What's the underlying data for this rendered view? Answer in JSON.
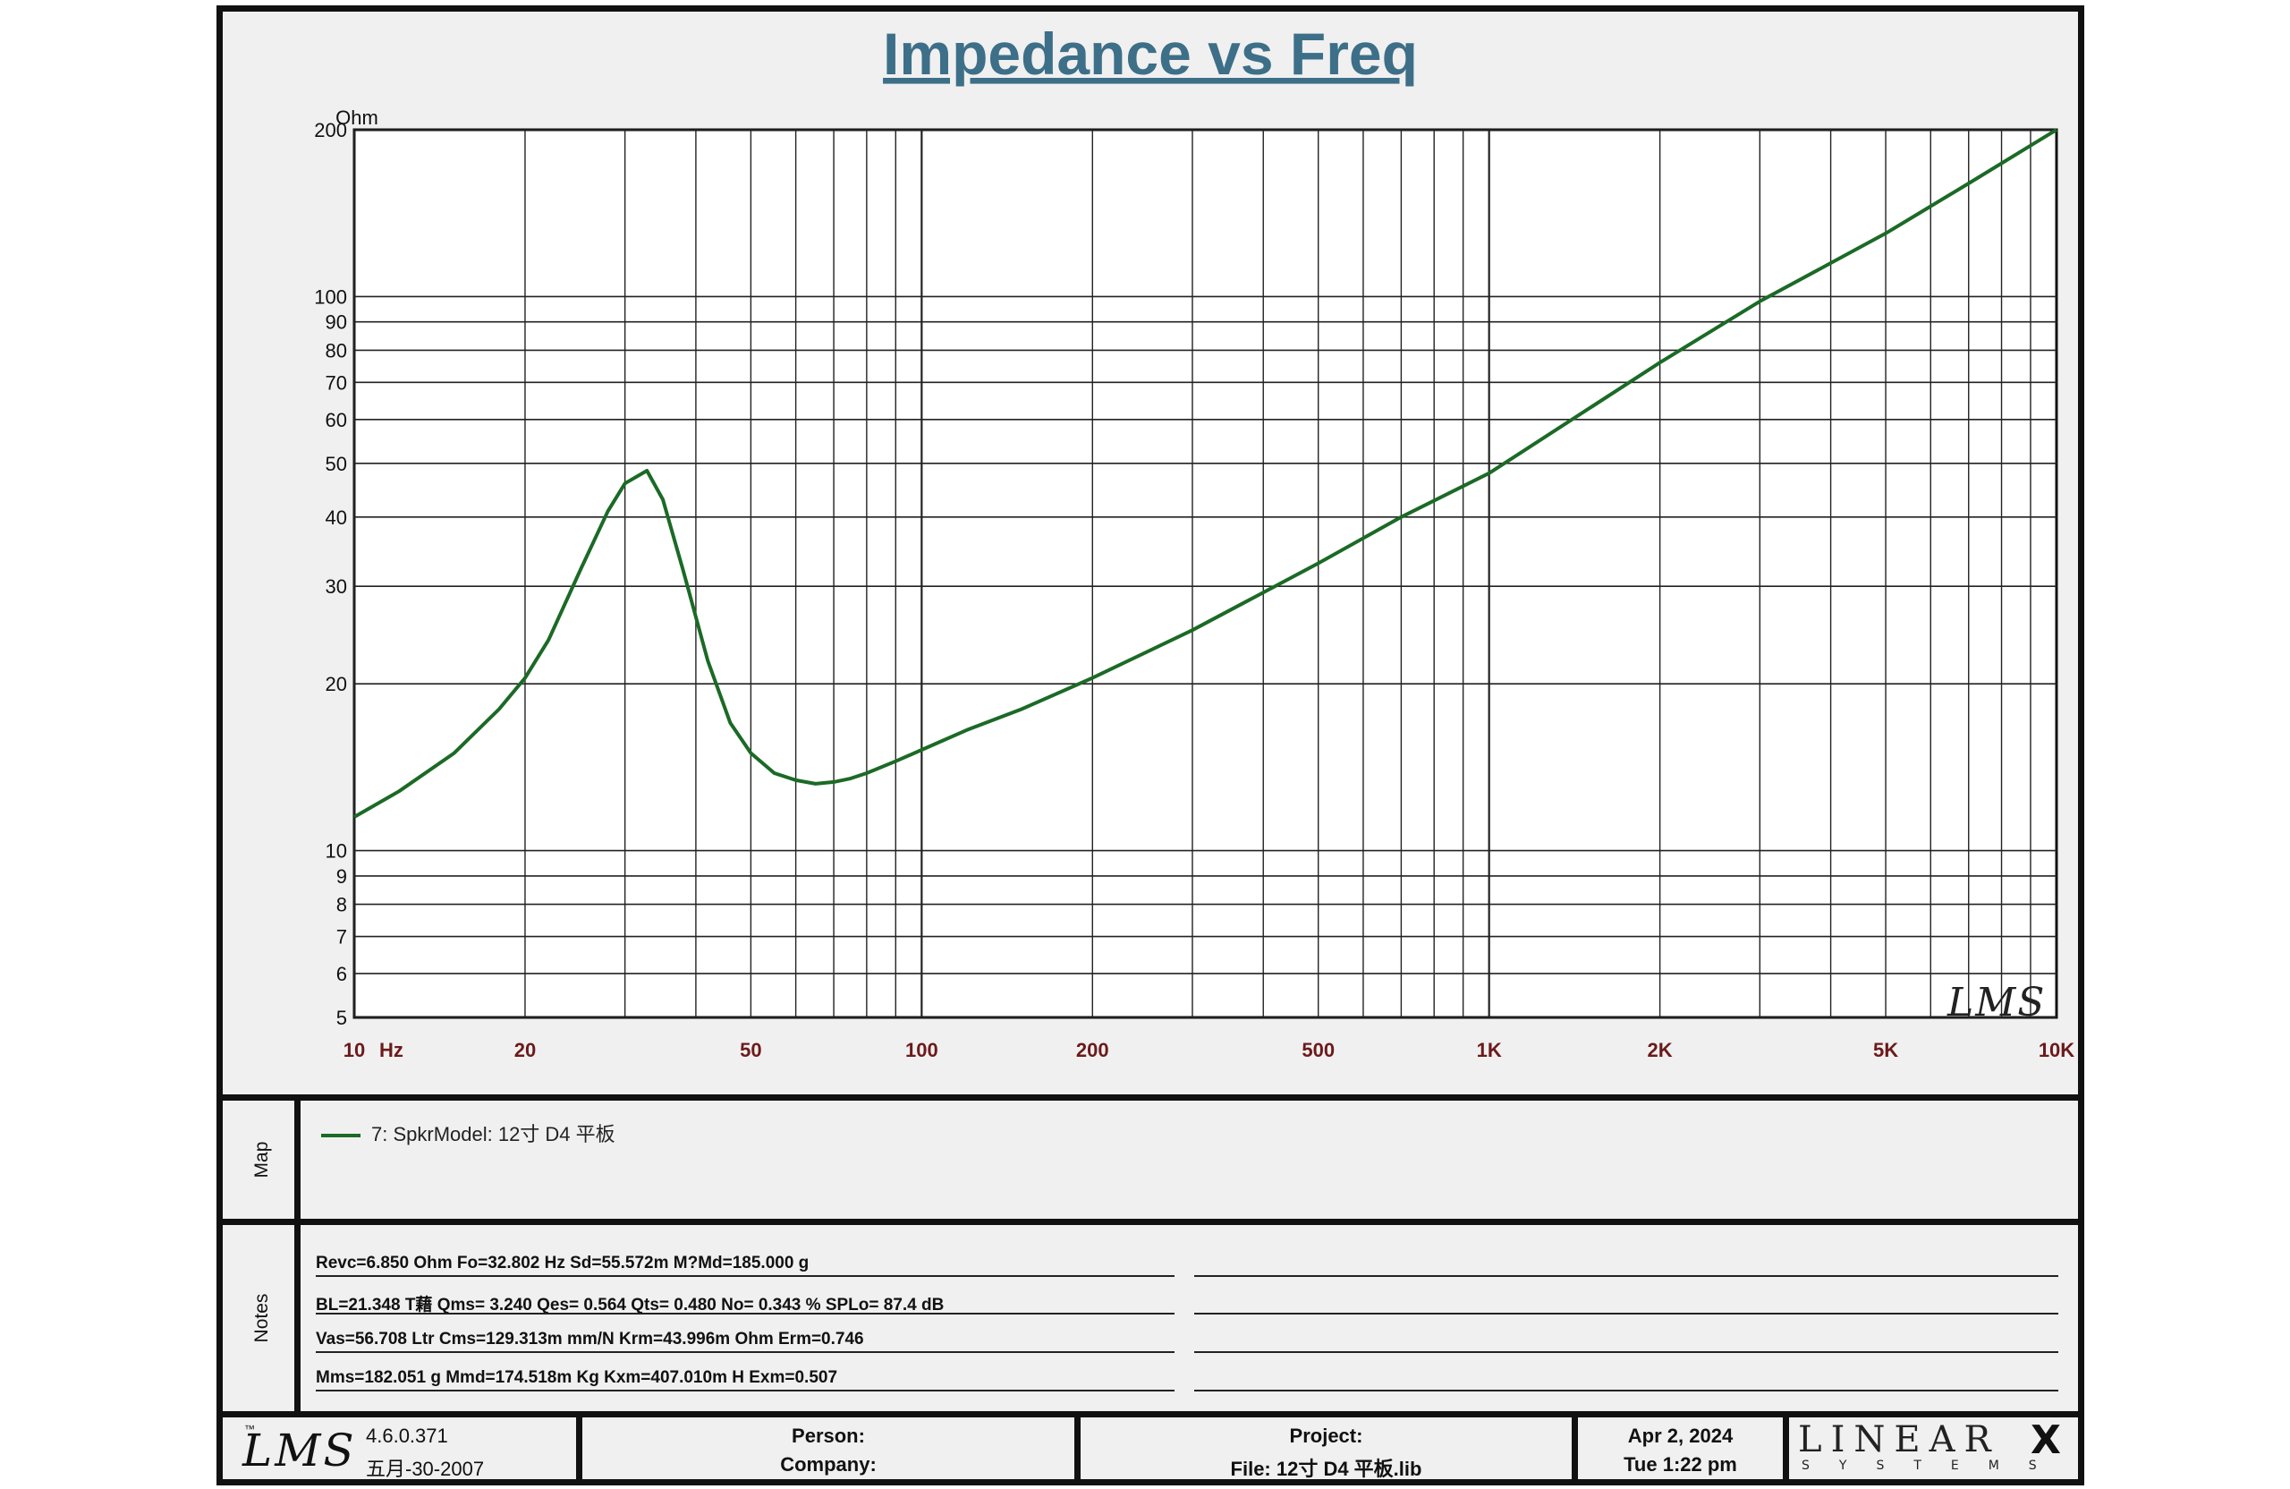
{
  "chart_data": {
    "type": "line",
    "title": "Impedance vs Freq",
    "ylabel": "Ohm",
    "xlabel": "Hz",
    "x_scale": "log",
    "y_scale": "log",
    "xlim": [
      10,
      10000
    ],
    "ylim": [
      5,
      200
    ],
    "grid": true,
    "x_ticks": [
      {
        "value": 10,
        "label": "10"
      },
      {
        "value": 20,
        "label": "20"
      },
      {
        "value": 50,
        "label": "50"
      },
      {
        "value": 100,
        "label": "100"
      },
      {
        "value": 200,
        "label": "200"
      },
      {
        "value": 500,
        "label": "500"
      },
      {
        "value": 1000,
        "label": "1K"
      },
      {
        "value": 2000,
        "label": "2K"
      },
      {
        "value": 5000,
        "label": "5K"
      },
      {
        "value": 10000,
        "label": "10K"
      }
    ],
    "y_ticks": [
      5,
      6,
      7,
      8,
      9,
      10,
      20,
      30,
      40,
      50,
      60,
      70,
      80,
      90,
      100,
      200
    ],
    "series": [
      {
        "name": "7: SpkrModel: 12寸 D4 平板",
        "color": "#1b6a26",
        "x": [
          10,
          12,
          15,
          18,
          20,
          22,
          25,
          28,
          30,
          32.8,
          35,
          38,
          42,
          46,
          50,
          55,
          60,
          65,
          70,
          75,
          80,
          90,
          100,
          120,
          150,
          200,
          300,
          500,
          700,
          1000,
          2000,
          3000,
          5000,
          7000,
          10000
        ],
        "y": [
          11.5,
          12.8,
          15,
          18,
          20.5,
          24,
          32,
          41,
          46,
          48.5,
          43,
          32,
          22,
          17,
          15,
          13.8,
          13.4,
          13.2,
          13.3,
          13.5,
          13.8,
          14.5,
          15.2,
          16.5,
          18,
          20.5,
          25,
          33,
          40,
          48,
          76,
          98,
          130,
          160,
          200
        ]
      }
    ]
  },
  "map": {
    "section_label": "Map",
    "legend_text": "7: SpkrModel: 12寸 D4 平板"
  },
  "notes": {
    "section_label": "Notes",
    "lines": [
      "Revc=6.850 Ohm  Fo=32.802 Hz  Sd=55.572m M?Md=185.000 g",
      "BL=21.348 T藉  Qms= 3.240  Qes= 0.564  Qts= 0.480  No= 0.343 %  SPLo= 87.4 dB",
      "Vas=56.708 Ltr  Cms=129.313m mm/N  Krm=43.996m Ohm  Erm=0.746",
      "Mms=182.051 g  Mmd=174.518m Kg  Kxm=407.010m H  Exm=0.507"
    ]
  },
  "footer": {
    "logo": "LMS",
    "logo_tm": "™",
    "version": "4.6.0.371",
    "version_date": "五月-30-2007",
    "person_label": "Person:",
    "company_label": "Company:",
    "project_label": "Project:",
    "file_label": "File: 12寸  D4 平板.lib",
    "date": "Apr  2, 2024",
    "time": "Tue  1:22 pm",
    "brand_main": "LINEAR",
    "brand_x": "X",
    "brand_sub": "SYSTEMS"
  },
  "watermark": "LMS"
}
